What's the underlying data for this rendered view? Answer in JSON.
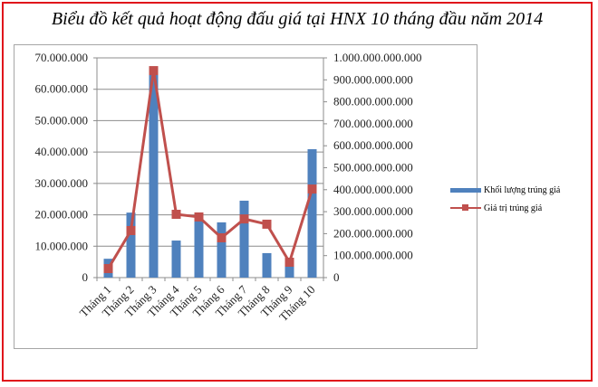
{
  "title": "Biểu đồ kết quả hoạt động đấu giá tại HNX 10 tháng đầu năm 2014",
  "legend": {
    "series_bar": "Khối lượng trúng giá",
    "series_line": "Giá trị trúng giá"
  },
  "colors": {
    "bar": "#4f81bd",
    "line": "#c0504d",
    "frame": "#e0141b",
    "grid": "#8c8c8c"
  },
  "left_axis_ticks": [
    "0",
    "10.000.000",
    "20.000.000",
    "30.000.000",
    "40.000.000",
    "50.000.000",
    "60.000.000",
    "70.000.000"
  ],
  "right_axis_ticks": [
    "0",
    "100.000.000.000",
    "200.000.000.000",
    "300.000.000.000",
    "400.000.000.000",
    "500.000.000.000",
    "600.000.000.000",
    "700.000.000.000",
    "800.000.000.000",
    "900.000.000.000",
    "1.000.000.000.000"
  ],
  "chart_data": {
    "type": "bar",
    "title": "Biểu đồ kết quả hoạt động đấu giá tại HNX 10 tháng đầu năm 2014",
    "categories": [
      "Tháng 1",
      "Tháng 2",
      "Tháng 3",
      "Tháng 4",
      "Tháng 5",
      "Tháng 6",
      "Tháng 7",
      "Tháng 8",
      "Tháng 9",
      "Tháng 10"
    ],
    "series": [
      {
        "name": "Khối lượng trúng giá",
        "type": "bar",
        "axis": "left",
        "values": [
          6000000,
          20700000,
          65500000,
          11800000,
          18700000,
          17600000,
          24500000,
          7800000,
          3800000,
          40900000
        ]
      },
      {
        "name": "Giá trị trúng giá",
        "type": "line",
        "axis": "right",
        "values": [
          41000000000,
          214000000000,
          942000000000,
          288000000000,
          276000000000,
          181000000000,
          267000000000,
          243000000000,
          70000000000,
          403000000000
        ]
      }
    ],
    "xlabel": "",
    "ylabel": "",
    "ylim": [
      0,
      70000000
    ],
    "y2lim": [
      0,
      1000000000000
    ],
    "grid": true,
    "legend_position": "right"
  }
}
